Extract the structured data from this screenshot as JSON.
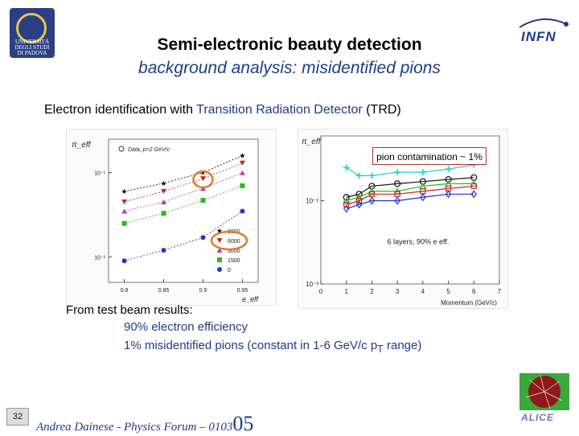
{
  "header": {
    "title_line1": "Semi-electronic beauty detection",
    "title_line2": "background analysis: misidentified pions"
  },
  "logos": {
    "padova_text": "UNIVERSITÀ DEGLI STUDI DI PADOVA",
    "infn_text": "INFN",
    "alice_text": "ALICE"
  },
  "subtitle": {
    "prefix": "Electron identification with ",
    "highlight": "Transition Radiation Detector",
    "suffix": " (TRD)"
  },
  "left_plot": {
    "ylabel": "π_eff",
    "legend_title": "Data, p=2 GeV/c",
    "xticks": [
      "0.8",
      "0.85",
      "0.9",
      "0.95"
    ],
    "xlabel": "e_eff",
    "ytick_labels": [
      "10⁻¹",
      "10⁻²"
    ],
    "legend_entries": [
      "8000",
      "6000",
      "3000",
      "1500",
      "0"
    ]
  },
  "right_plot": {
    "ylabel": "π_eff",
    "callout": "pion contamination ~ 1%",
    "note": "6 layers, 90% e eff.",
    "xlabel": "Momentum (GeV/c)",
    "xticks": [
      "0",
      "1",
      "2",
      "3",
      "4",
      "5",
      "6",
      "7"
    ],
    "ytick_labels": [
      "10⁻²",
      "10⁻³"
    ]
  },
  "body": {
    "line1": "From test beam results:",
    "line2": "90% electron efficiency",
    "line3_pre": "1% misidentified pions (constant in 1-6 GeV/c p",
    "line3_sub": "T",
    "line3_post": " range)"
  },
  "footer": {
    "page_number": "32",
    "author": "Andrea Dainese  - Physics Forum – 0103",
    "year_big": "05"
  },
  "chart_data": [
    {
      "type": "line",
      "ylabel": "π_eff",
      "xlabel": "e_eff",
      "x": [
        0.8,
        0.85,
        0.9,
        0.95
      ],
      "yscale": "log",
      "series": [
        {
          "name": "8000",
          "values": [
            0.06,
            0.075,
            0.1,
            0.16
          ],
          "color": "#000000"
        },
        {
          "name": "6000",
          "values": [
            0.045,
            0.06,
            0.085,
            0.13
          ],
          "color": "#cc2222"
        },
        {
          "name": "3000",
          "values": [
            0.035,
            0.045,
            0.065,
            0.1
          ],
          "color": "#b040c0"
        },
        {
          "name": "1500",
          "values": [
            0.025,
            0.033,
            0.047,
            0.07
          ],
          "color": "#22bb22"
        },
        {
          "name": "0",
          "values": [
            0.009,
            0.012,
            0.017,
            0.035
          ],
          "color": "#2233cc"
        }
      ]
    },
    {
      "type": "line",
      "ylabel": "π_eff",
      "xlabel": "Momentum (GeV/c)",
      "x": [
        1,
        1.5,
        2,
        3,
        4,
        5,
        6
      ],
      "xlim": [
        0,
        7
      ],
      "yscale": "log",
      "series": [
        {
          "values": [
            0.025,
            0.02,
            0.02,
            0.022,
            0.022,
            0.024,
            0.027
          ],
          "color": "#22cccc"
        },
        {
          "values": [
            0.011,
            0.012,
            0.015,
            0.016,
            0.017,
            0.018,
            0.019
          ],
          "color": "#111111"
        },
        {
          "values": [
            0.01,
            0.011,
            0.013,
            0.013,
            0.015,
            0.016,
            0.016
          ],
          "color": "#22bb22"
        },
        {
          "values": [
            0.009,
            0.01,
            0.012,
            0.012,
            0.013,
            0.014,
            0.015
          ],
          "color": "#cc2222"
        },
        {
          "values": [
            0.008,
            0.009,
            0.01,
            0.01,
            0.011,
            0.012,
            0.012
          ],
          "color": "#2233cc"
        }
      ]
    }
  ]
}
